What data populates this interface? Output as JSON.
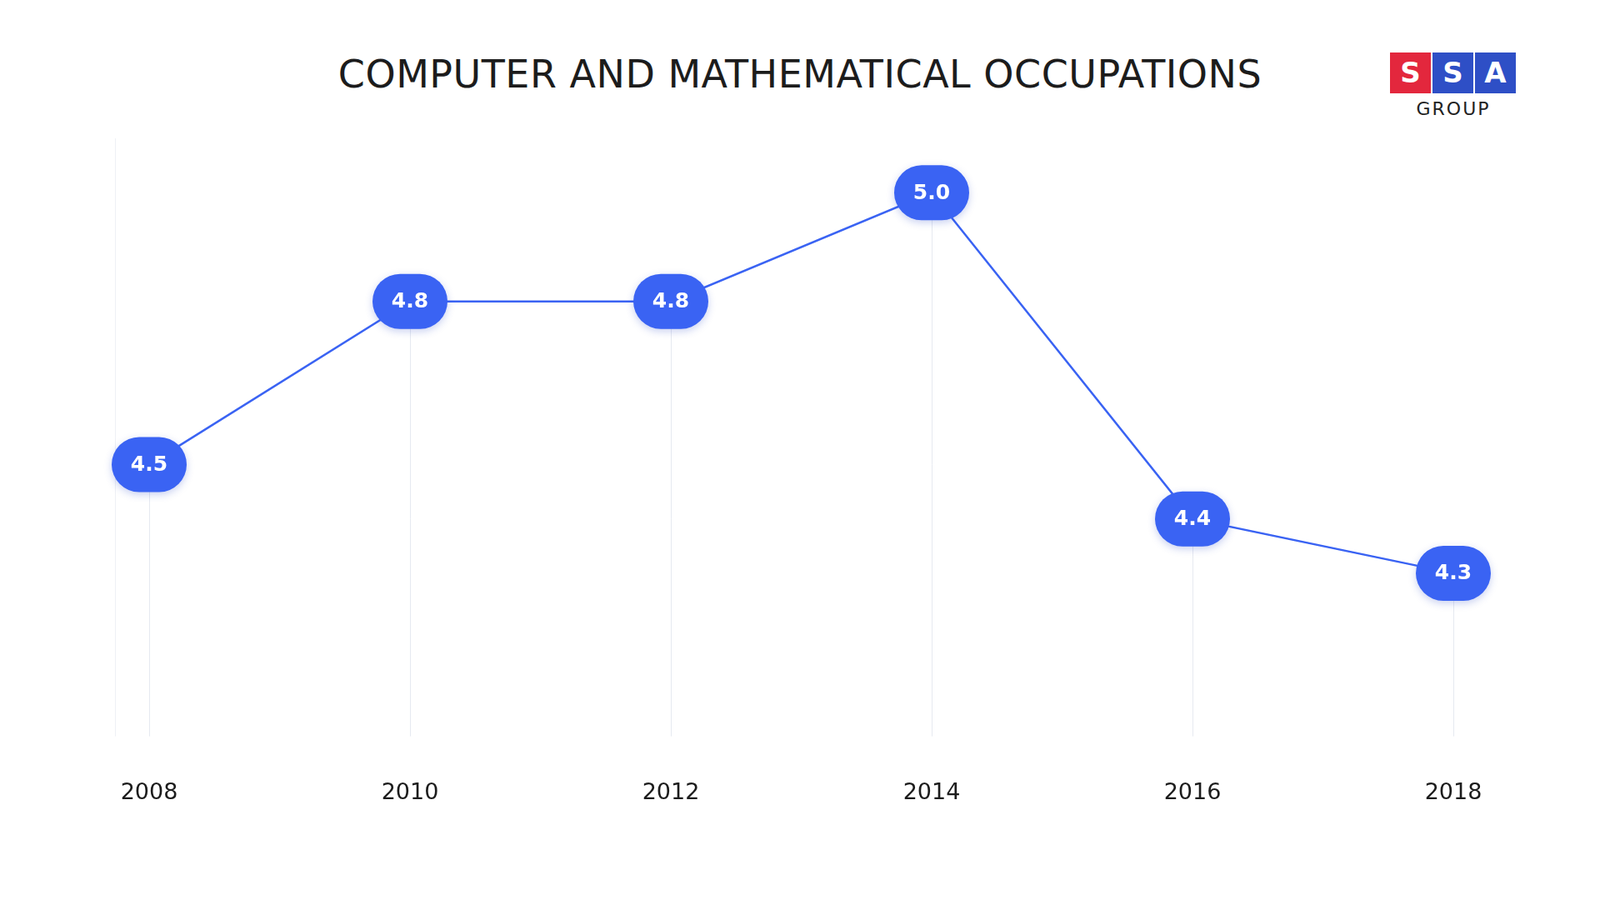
{
  "chart_data": {
    "type": "line",
    "title": "COMPUTER AND MATHEMATICAL OCCUPATIONS",
    "categories": [
      "2008",
      "2010",
      "2012",
      "2014",
      "2016",
      "2018"
    ],
    "values": [
      4.5,
      4.8,
      4.8,
      5.0,
      4.4,
      4.3
    ],
    "value_labels": [
      "4.5",
      "4.8",
      "4.8",
      "5.0",
      "4.4",
      "4.3"
    ],
    "color": "#3a63f3",
    "ylim": [
      4.0,
      5.1
    ],
    "grid": true,
    "data_labels": true,
    "tick_labels": "x"
  },
  "logo": {
    "letters": [
      "S",
      "S",
      "A"
    ],
    "colors": [
      "#e3273d",
      "#2e4fc6",
      "#2e4fc6"
    ],
    "caption": "GROUP"
  }
}
